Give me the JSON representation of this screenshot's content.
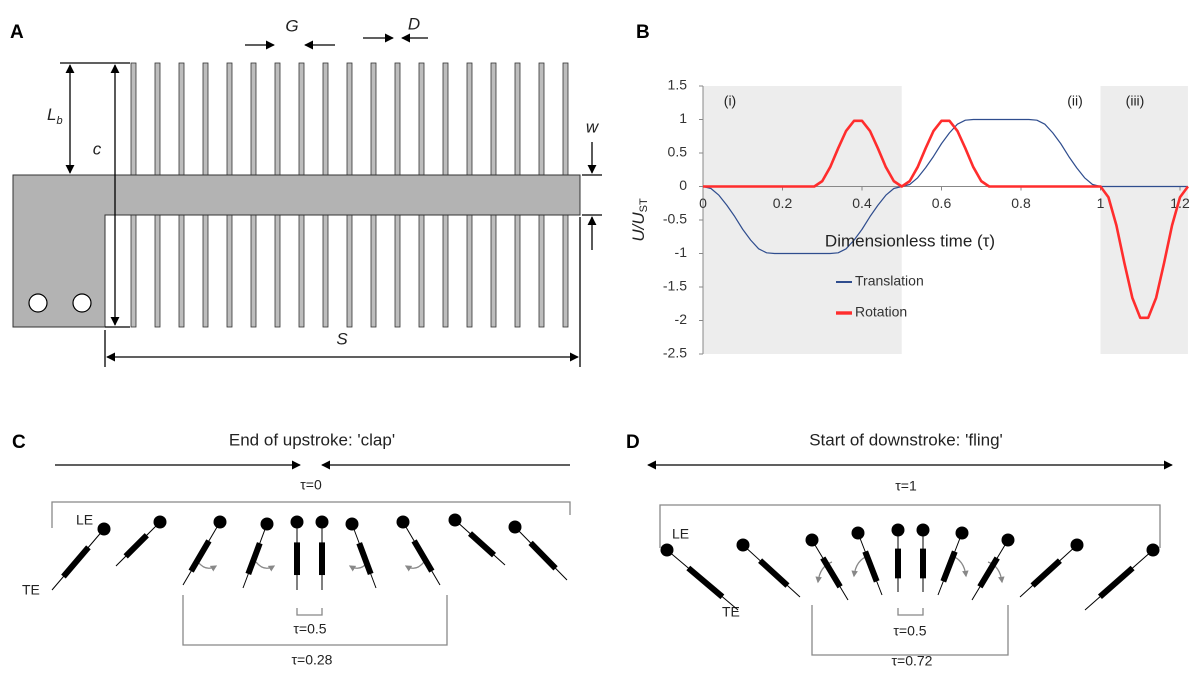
{
  "panel_a": {
    "label": "A",
    "dims": {
      "gap": "G",
      "diameter": "D",
      "length": "L",
      "length_sub": "b",
      "chord": "c",
      "width": "w",
      "span": "S"
    }
  },
  "chart_data": {
    "type": "line",
    "label": "B",
    "xlabel": "Dimensionless time (τ)",
    "ylabel": "U/U",
    "ylabel_sub": "ST",
    "x": [
      0,
      0.02,
      0.04,
      0.06,
      0.08,
      0.1,
      0.12,
      0.14,
      0.16,
      0.18,
      0.2,
      0.22,
      0.24,
      0.26,
      0.28,
      0.3,
      0.32,
      0.34,
      0.36,
      0.38,
      0.4,
      0.42,
      0.44,
      0.46,
      0.48,
      0.5,
      0.52,
      0.54,
      0.56,
      0.58,
      0.6,
      0.62,
      0.64,
      0.66,
      0.68,
      0.7,
      0.72,
      0.74,
      0.76,
      0.78,
      0.8,
      0.82,
      0.84,
      0.86,
      0.88,
      0.9,
      0.92,
      0.94,
      0.96,
      0.98,
      1,
      1.02,
      1.04,
      1.06,
      1.08,
      1.1,
      1.12,
      1.14,
      1.16,
      1.18,
      1.2,
      1.22
    ],
    "series": [
      {
        "name": "Translation",
        "color": "#2f4d8e",
        "width": 1.2,
        "values": [
          0,
          -0.03,
          -0.13,
          -0.28,
          -0.45,
          -0.64,
          -0.8,
          -0.93,
          -0.99,
          -1,
          -1,
          -1,
          -1,
          -1,
          -1,
          -1,
          -1,
          -0.99,
          -0.93,
          -0.8,
          -0.64,
          -0.45,
          -0.28,
          -0.13,
          -0.03,
          0,
          0.03,
          0.13,
          0.28,
          0.45,
          0.64,
          0.8,
          0.93,
          0.99,
          1,
          1,
          1,
          1,
          1,
          1,
          1,
          1,
          0.99,
          0.93,
          0.8,
          0.64,
          0.45,
          0.28,
          0.13,
          0.03,
          0,
          0,
          0,
          0,
          0,
          0,
          0,
          0,
          0,
          0,
          0,
          0
        ]
      },
      {
        "name": "Rotation",
        "color": "#ff2d2d",
        "width": 2.6,
        "values": [
          0,
          0,
          0,
          0,
          0,
          0,
          0,
          0,
          0,
          0,
          0,
          0,
          0,
          0,
          0,
          0.08,
          0.29,
          0.57,
          0.83,
          0.98,
          0.98,
          0.83,
          0.57,
          0.29,
          0.08,
          0,
          0.08,
          0.29,
          0.57,
          0.83,
          0.98,
          0.98,
          0.83,
          0.57,
          0.29,
          0.08,
          0,
          0,
          0,
          0,
          0,
          0,
          0,
          0,
          0,
          0,
          0,
          0,
          0,
          0,
          0,
          -0.16,
          -0.58,
          -1.14,
          -1.66,
          -1.96,
          -1.96,
          -1.66,
          -1.14,
          -0.58,
          -0.16,
          0
        ]
      }
    ],
    "xlim": [
      0,
      1.22
    ],
    "ylim": [
      -2.5,
      1.5
    ],
    "xticks": [
      0,
      0.2,
      0.4,
      0.6,
      0.8,
      1,
      1.2
    ],
    "yticks": [
      1.5,
      1,
      0.5,
      0,
      -0.5,
      -1,
      -1.5,
      -2,
      -2.5
    ],
    "shaded": [
      [
        0,
        0.5
      ],
      [
        1,
        1.22
      ]
    ],
    "annotations": [
      "(i)",
      "(ii)",
      "(iii)"
    ]
  },
  "panel_c": {
    "label": "C",
    "title": "End of upstroke: 'clap'",
    "tau_outer": "τ=0",
    "le": "LE",
    "te": "TE",
    "tau_inner": "τ=0.5",
    "tau_mid": "τ=0.28"
  },
  "panel_d": {
    "label": "D",
    "title": "Start of downstroke: 'fling'",
    "tau_outer": "τ=1",
    "le": "LE",
    "te": "TE",
    "tau_inner": "τ=0.5",
    "tau_mid": "τ=0.72"
  }
}
